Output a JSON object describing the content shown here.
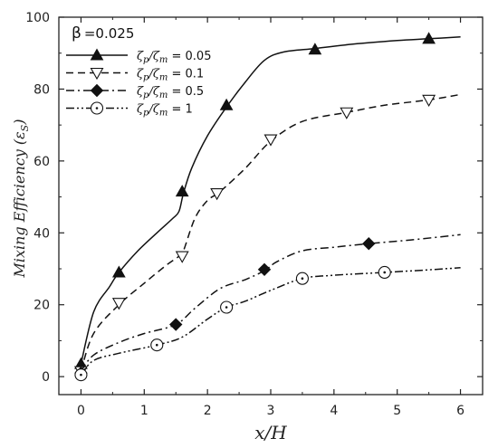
{
  "chart_data": {
    "type": "line",
    "title": "",
    "xlabel": "x/H",
    "ylabel": "Mixing Efficiency (ε",
    "ylabel_sub": "S",
    "ylabel_close": ")",
    "xlim": [
      -0.35,
      6.35
    ],
    "ylim": [
      -5,
      100
    ],
    "x_ticks": [
      0,
      1,
      2,
      3,
      4,
      5,
      6
    ],
    "y_ticks": [
      0,
      20,
      40,
      60,
      80,
      100
    ],
    "grid": false,
    "legend_position": "top-left",
    "annotation": {
      "symbol": "β",
      "value": "=0.025"
    },
    "series": [
      {
        "name": "ζp/ζm = 0.05",
        "legend_label": {
          "a": "ζ",
          "a_sub": "p",
          "sep": "/ζ",
          "b_sub": "m",
          "eq": " = 0.05"
        },
        "line_style": "solid",
        "marker": "filled-triangle",
        "curve": [
          [
            0,
            3.5
          ],
          [
            0.2,
            18
          ],
          [
            0.45,
            25
          ],
          [
            0.6,
            29
          ],
          [
            0.9,
            35
          ],
          [
            1.2,
            40
          ],
          [
            1.45,
            44
          ],
          [
            1.55,
            46
          ],
          [
            1.62,
            51
          ],
          [
            1.75,
            58
          ],
          [
            2.0,
            67
          ],
          [
            2.3,
            75
          ],
          [
            2.6,
            82
          ],
          [
            2.9,
            88
          ],
          [
            3.2,
            90.3
          ],
          [
            3.7,
            91.3
          ],
          [
            4.3,
            92.5
          ],
          [
            5.0,
            93.5
          ],
          [
            5.5,
            94
          ],
          [
            6.0,
            94.5
          ]
        ],
        "markers": [
          [
            0,
            3.5
          ],
          [
            0.6,
            29
          ],
          [
            1.6,
            51.5
          ],
          [
            2.3,
            75.5
          ],
          [
            3.7,
            91
          ],
          [
            5.5,
            94
          ]
        ]
      },
      {
        "name": "ζp/ζm = 0.1",
        "legend_label": {
          "a": "ζ",
          "a_sub": "p",
          "sep": "/ζ",
          "b_sub": "m",
          "eq": " = 0.1"
        },
        "line_style": "dashed",
        "marker": "open-triangle-down",
        "curve": [
          [
            0,
            1.5
          ],
          [
            0.2,
            12
          ],
          [
            0.6,
            20
          ],
          [
            1.0,
            26
          ],
          [
            1.35,
            31
          ],
          [
            1.55,
            33.5
          ],
          [
            1.62,
            35
          ],
          [
            1.8,
            44
          ],
          [
            2.0,
            49
          ],
          [
            2.2,
            51.5
          ],
          [
            2.6,
            58
          ],
          [
            3.0,
            65.5
          ],
          [
            3.5,
            71
          ],
          [
            4.2,
            73.5
          ],
          [
            4.8,
            75.5
          ],
          [
            5.5,
            77
          ],
          [
            6.0,
            78.5
          ]
        ],
        "markers": [
          [
            0,
            1.5
          ],
          [
            0.6,
            20.5
          ],
          [
            1.6,
            33.5
          ],
          [
            2.15,
            51
          ],
          [
            3.0,
            66
          ],
          [
            4.2,
            73.5
          ],
          [
            5.5,
            77
          ]
        ]
      },
      {
        "name": "ζp/ζm = 0.5",
        "legend_label": {
          "a": "ζ",
          "a_sub": "p",
          "sep": "/ζ",
          "b_sub": "m",
          "eq": " = 0.5"
        },
        "line_style": "dashdot",
        "marker": "filled-diamond",
        "curve": [
          [
            0,
            1.5
          ],
          [
            0.2,
            6
          ],
          [
            0.6,
            9.5
          ],
          [
            1.0,
            12
          ],
          [
            1.5,
            14.5
          ],
          [
            1.8,
            19
          ],
          [
            2.2,
            24.5
          ],
          [
            2.6,
            27
          ],
          [
            2.9,
            29.5
          ],
          [
            3.1,
            32
          ],
          [
            3.5,
            35
          ],
          [
            4.0,
            36
          ],
          [
            4.55,
            37
          ],
          [
            5.2,
            38
          ],
          [
            6.0,
            39.5
          ]
        ],
        "markers": [
          [
            0,
            1
          ],
          [
            1.5,
            14.5
          ],
          [
            2.9,
            29.8
          ],
          [
            4.55,
            37
          ]
        ]
      },
      {
        "name": "ζp/ζm = 1",
        "legend_label": {
          "a": "ζ",
          "a_sub": "p",
          "sep": "/ζ",
          "b_sub": "m",
          "eq": " = 1"
        },
        "line_style": "dashdotdot",
        "marker": "open-circle-dot",
        "curve": [
          [
            0,
            0.5
          ],
          [
            0.2,
            4.5
          ],
          [
            0.6,
            6.5
          ],
          [
            1.2,
            8.8
          ],
          [
            1.6,
            11
          ],
          [
            2.0,
            16
          ],
          [
            2.3,
            19.3
          ],
          [
            2.6,
            21
          ],
          [
            3.0,
            24
          ],
          [
            3.5,
            27.3
          ],
          [
            4.0,
            28.2
          ],
          [
            4.8,
            29
          ],
          [
            5.4,
            29.6
          ],
          [
            6.0,
            30.3
          ]
        ],
        "markers": [
          [
            0,
            0.5
          ],
          [
            1.2,
            8.8
          ],
          [
            2.3,
            19.3
          ],
          [
            3.5,
            27.3
          ],
          [
            4.8,
            29
          ]
        ]
      }
    ]
  }
}
